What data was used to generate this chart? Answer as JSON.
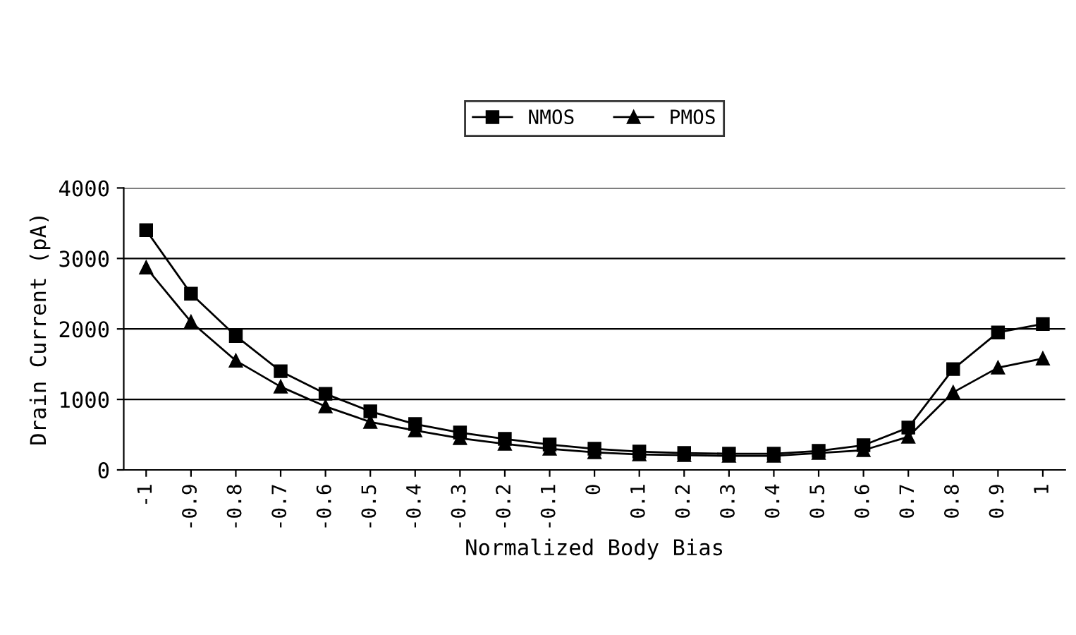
{
  "chart_data": {
    "type": "line",
    "xlabel": "Normalized Body Bias",
    "ylabel": "Drain Current (pA)",
    "categories": [
      "-1",
      "-0.9",
      "-0.8",
      "-0.7",
      "-0.6",
      "-0.5",
      "-0.4",
      "-0.3",
      "-0.2",
      "-0.1",
      "0",
      "0.1",
      "0.2",
      "0.3",
      "0.4",
      "0.5",
      "0.6",
      "0.7",
      "0.8",
      "0.9",
      "1"
    ],
    "series": [
      {
        "name": "NMOS",
        "color": "#000000",
        "marker": "square",
        "values": [
          3400,
          2500,
          1900,
          1400,
          1080,
          830,
          650,
          530,
          440,
          360,
          300,
          260,
          240,
          230,
          230,
          270,
          350,
          600,
          1430,
          1950,
          2070
        ]
      },
      {
        "name": "PMOS",
        "color": "#000000",
        "marker": "triangle",
        "values": [
          2870,
          2100,
          1550,
          1180,
          900,
          680,
          560,
          450,
          370,
          300,
          250,
          220,
          210,
          200,
          200,
          240,
          280,
          470,
          1100,
          1450,
          1580
        ]
      }
    ],
    "ylim": [
      0,
      4000
    ],
    "yticks": [
      0,
      1000,
      2000,
      3000,
      4000
    ],
    "grid": "y",
    "legend": "top",
    "line_style": "solid"
  }
}
